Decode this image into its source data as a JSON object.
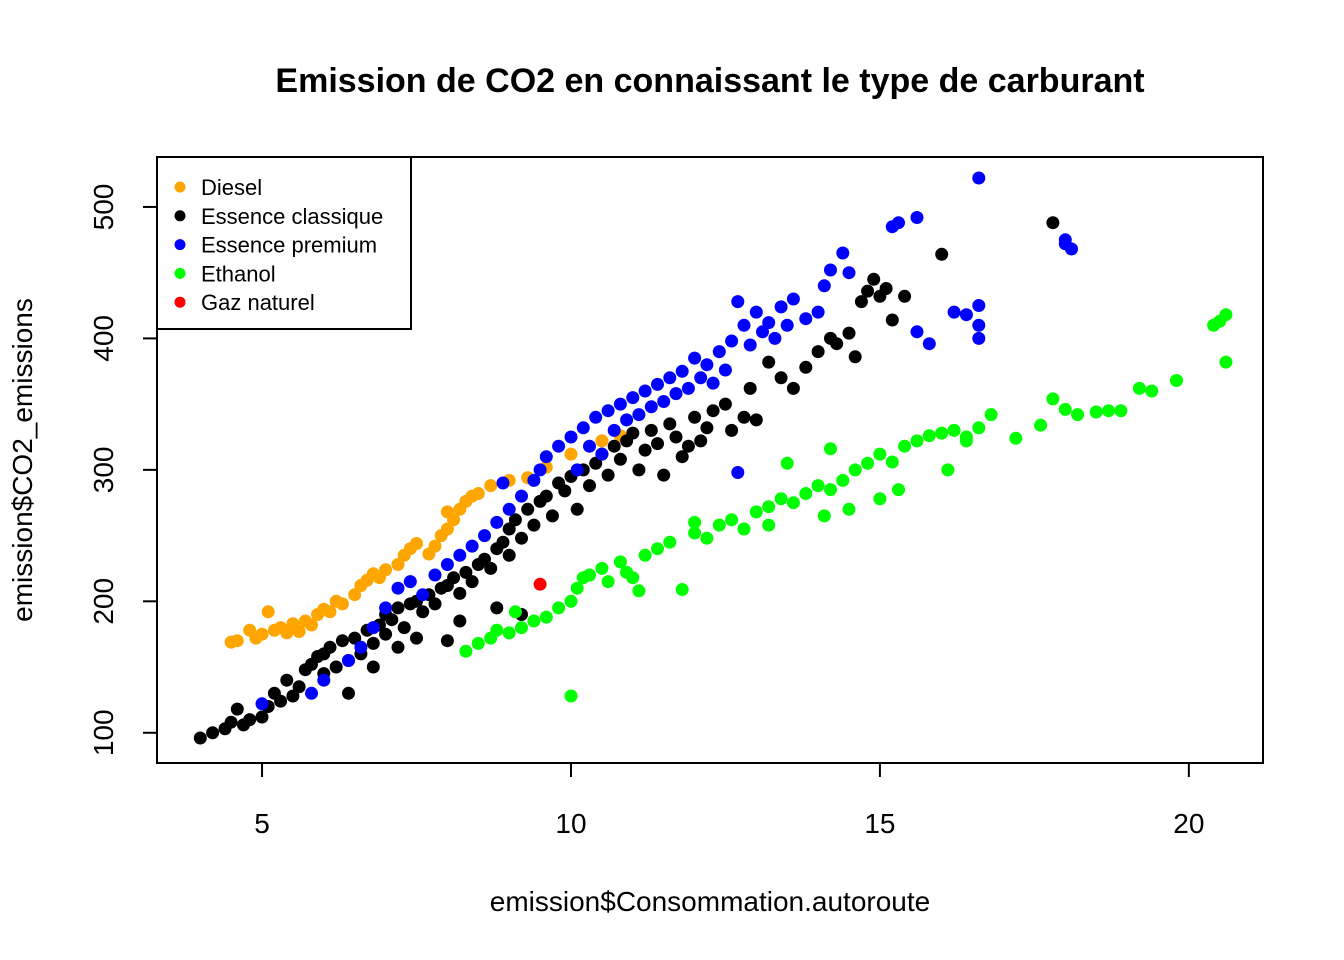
{
  "chart_data": {
    "type": "scatter",
    "title": "Emission de CO2 en connaissant le type de carburant",
    "xlabel": "emission$Consommation.autoroute",
    "ylabel": "emission$CO2_emissions",
    "xlim": [
      3.3,
      21.2
    ],
    "ylim": [
      77,
      538
    ],
    "xticks": [
      5,
      10,
      15,
      20
    ],
    "yticks": [
      100,
      200,
      300,
      400,
      500
    ],
    "grid": false,
    "legend_position": "top-left",
    "series": [
      {
        "name": "Diesel",
        "color": "#FFA500",
        "points": [
          [
            4.5,
            169
          ],
          [
            4.6,
            170
          ],
          [
            4.8,
            178
          ],
          [
            4.9,
            172
          ],
          [
            5.0,
            175
          ],
          [
            5.1,
            192
          ],
          [
            5.2,
            178
          ],
          [
            5.3,
            180
          ],
          [
            5.4,
            176
          ],
          [
            5.5,
            183
          ],
          [
            5.6,
            177
          ],
          [
            5.7,
            185
          ],
          [
            5.8,
            182
          ],
          [
            5.9,
            190
          ],
          [
            6.0,
            194
          ],
          [
            6.1,
            192
          ],
          [
            6.2,
            200
          ],
          [
            6.3,
            198
          ],
          [
            6.5,
            205
          ],
          [
            6.6,
            212
          ],
          [
            6.7,
            216
          ],
          [
            6.8,
            221
          ],
          [
            6.9,
            218
          ],
          [
            7.0,
            224
          ],
          [
            7.2,
            228
          ],
          [
            7.3,
            235
          ],
          [
            7.4,
            240
          ],
          [
            7.5,
            244
          ],
          [
            7.7,
            236
          ],
          [
            7.8,
            242
          ],
          [
            7.9,
            250
          ],
          [
            8.0,
            255
          ],
          [
            8.0,
            268
          ],
          [
            8.1,
            262
          ],
          [
            8.2,
            270
          ],
          [
            8.3,
            276
          ],
          [
            8.4,
            280
          ],
          [
            8.5,
            282
          ],
          [
            8.7,
            288
          ],
          [
            9.0,
            292
          ],
          [
            9.3,
            294
          ],
          [
            9.6,
            302
          ],
          [
            10.0,
            312
          ],
          [
            10.5,
            322
          ],
          [
            10.8,
            326
          ]
        ]
      },
      {
        "name": "Essence classique",
        "color": "#000000",
        "points": [
          [
            4.0,
            96
          ],
          [
            4.2,
            100
          ],
          [
            4.4,
            103
          ],
          [
            4.5,
            108
          ],
          [
            4.6,
            118
          ],
          [
            4.7,
            106
          ],
          [
            4.8,
            110
          ],
          [
            5.0,
            112
          ],
          [
            5.1,
            120
          ],
          [
            5.2,
            130
          ],
          [
            5.3,
            124
          ],
          [
            5.4,
            140
          ],
          [
            5.5,
            128
          ],
          [
            5.6,
            135
          ],
          [
            5.7,
            148
          ],
          [
            5.8,
            152
          ],
          [
            5.9,
            158
          ],
          [
            6.0,
            145
          ],
          [
            6.0,
            160
          ],
          [
            6.1,
            165
          ],
          [
            6.2,
            150
          ],
          [
            6.3,
            170
          ],
          [
            6.4,
            155
          ],
          [
            6.5,
            172
          ],
          [
            6.6,
            160
          ],
          [
            6.7,
            178
          ],
          [
            6.8,
            168
          ],
          [
            6.9,
            182
          ],
          [
            7.0,
            175
          ],
          [
            7.0,
            190
          ],
          [
            7.1,
            186
          ],
          [
            7.2,
            195
          ],
          [
            7.3,
            180
          ],
          [
            7.4,
            198
          ],
          [
            7.5,
            200
          ],
          [
            7.6,
            192
          ],
          [
            7.7,
            205
          ],
          [
            7.8,
            198
          ],
          [
            7.9,
            210
          ],
          [
            8.0,
            212
          ],
          [
            8.0,
            170
          ],
          [
            8.1,
            218
          ],
          [
            8.2,
            206
          ],
          [
            8.3,
            222
          ],
          [
            8.4,
            215
          ],
          [
            8.5,
            228
          ],
          [
            8.6,
            232
          ],
          [
            8.7,
            225
          ],
          [
            8.8,
            240
          ],
          [
            8.9,
            245
          ],
          [
            9.0,
            235
          ],
          [
            9.0,
            255
          ],
          [
            9.1,
            262
          ],
          [
            9.2,
            248
          ],
          [
            9.3,
            270
          ],
          [
            9.4,
            258
          ],
          [
            9.5,
            276
          ],
          [
            9.6,
            280
          ],
          [
            9.7,
            265
          ],
          [
            9.8,
            290
          ],
          [
            9.9,
            284
          ],
          [
            10.0,
            295
          ],
          [
            10.1,
            270
          ],
          [
            10.2,
            300
          ],
          [
            10.3,
            288
          ],
          [
            10.4,
            305
          ],
          [
            10.5,
            312
          ],
          [
            10.6,
            296
          ],
          [
            10.7,
            318
          ],
          [
            10.8,
            308
          ],
          [
            10.9,
            322
          ],
          [
            11.0,
            328
          ],
          [
            11.1,
            300
          ],
          [
            11.2,
            315
          ],
          [
            11.3,
            330
          ],
          [
            11.4,
            320
          ],
          [
            11.5,
            296
          ],
          [
            11.6,
            335
          ],
          [
            11.7,
            325
          ],
          [
            11.8,
            310
          ],
          [
            11.9,
            318
          ],
          [
            12.0,
            340
          ],
          [
            12.1,
            322
          ],
          [
            12.2,
            332
          ],
          [
            12.3,
            345
          ],
          [
            12.5,
            350
          ],
          [
            12.6,
            330
          ],
          [
            12.8,
            340
          ],
          [
            12.9,
            362
          ],
          [
            13.0,
            338
          ],
          [
            13.2,
            382
          ],
          [
            13.4,
            370
          ],
          [
            13.6,
            362
          ],
          [
            13.8,
            378
          ],
          [
            14.0,
            390
          ],
          [
            14.2,
            400
          ],
          [
            14.3,
            396
          ],
          [
            14.5,
            404
          ],
          [
            14.6,
            386
          ],
          [
            14.7,
            428
          ],
          [
            14.8,
            436
          ],
          [
            14.9,
            445
          ],
          [
            15.0,
            432
          ],
          [
            15.1,
            438
          ],
          [
            15.2,
            414
          ],
          [
            15.4,
            432
          ],
          [
            16.0,
            464
          ],
          [
            17.8,
            488
          ],
          [
            6.4,
            130
          ],
          [
            6.8,
            150
          ],
          [
            7.2,
            165
          ],
          [
            7.5,
            172
          ],
          [
            8.2,
            185
          ],
          [
            8.8,
            195
          ],
          [
            9.2,
            190
          ]
        ]
      },
      {
        "name": "Essence premium",
        "color": "#0000FF",
        "points": [
          [
            5.0,
            122
          ],
          [
            5.8,
            130
          ],
          [
            6.0,
            140
          ],
          [
            6.4,
            155
          ],
          [
            6.6,
            165
          ],
          [
            6.8,
            180
          ],
          [
            7.0,
            195
          ],
          [
            7.2,
            210
          ],
          [
            7.4,
            215
          ],
          [
            7.6,
            205
          ],
          [
            7.8,
            220
          ],
          [
            8.0,
            228
          ],
          [
            8.2,
            235
          ],
          [
            8.4,
            242
          ],
          [
            8.6,
            250
          ],
          [
            8.8,
            260
          ],
          [
            8.9,
            290
          ],
          [
            9.0,
            270
          ],
          [
            9.2,
            280
          ],
          [
            9.4,
            292
          ],
          [
            9.5,
            300
          ],
          [
            9.6,
            310
          ],
          [
            9.8,
            318
          ],
          [
            10.0,
            325
          ],
          [
            10.1,
            300
          ],
          [
            10.2,
            332
          ],
          [
            10.3,
            318
          ],
          [
            10.4,
            340
          ],
          [
            10.5,
            312
          ],
          [
            10.6,
            345
          ],
          [
            10.7,
            330
          ],
          [
            10.8,
            350
          ],
          [
            10.9,
            338
          ],
          [
            11.0,
            355
          ],
          [
            11.1,
            342
          ],
          [
            11.2,
            360
          ],
          [
            11.3,
            348
          ],
          [
            11.4,
            365
          ],
          [
            11.5,
            352
          ],
          [
            11.6,
            370
          ],
          [
            11.7,
            358
          ],
          [
            11.8,
            375
          ],
          [
            11.9,
            362
          ],
          [
            12.0,
            385
          ],
          [
            12.1,
            370
          ],
          [
            12.2,
            380
          ],
          [
            12.3,
            366
          ],
          [
            12.4,
            390
          ],
          [
            12.5,
            376
          ],
          [
            12.6,
            398
          ],
          [
            12.7,
            428
          ],
          [
            12.7,
            298
          ],
          [
            12.8,
            410
          ],
          [
            12.9,
            395
          ],
          [
            13.0,
            420
          ],
          [
            13.1,
            405
          ],
          [
            13.2,
            412
          ],
          [
            13.3,
            400
          ],
          [
            13.4,
            424
          ],
          [
            13.5,
            410
          ],
          [
            13.6,
            430
          ],
          [
            13.8,
            415
          ],
          [
            14.0,
            420
          ],
          [
            14.1,
            440
          ],
          [
            14.2,
            452
          ],
          [
            14.4,
            465
          ],
          [
            14.5,
            450
          ],
          [
            15.2,
            485
          ],
          [
            15.3,
            488
          ],
          [
            15.6,
            492
          ],
          [
            16.2,
            420
          ],
          [
            16.4,
            418
          ],
          [
            15.6,
            405
          ],
          [
            15.8,
            396
          ],
          [
            16.6,
            425
          ],
          [
            16.6,
            410
          ],
          [
            16.6,
            400
          ],
          [
            16.6,
            522
          ],
          [
            18.0,
            475
          ],
          [
            18.1,
            468
          ],
          [
            18.0,
            472
          ]
        ]
      },
      {
        "name": "Ethanol",
        "color": "#00FF00",
        "points": [
          [
            8.3,
            162
          ],
          [
            8.5,
            168
          ],
          [
            8.7,
            172
          ],
          [
            8.8,
            178
          ],
          [
            9.0,
            176
          ],
          [
            9.1,
            192
          ],
          [
            9.2,
            180
          ],
          [
            9.4,
            185
          ],
          [
            9.6,
            188
          ],
          [
            9.8,
            195
          ],
          [
            10.0,
            128
          ],
          [
            10.0,
            200
          ],
          [
            10.1,
            210
          ],
          [
            10.2,
            218
          ],
          [
            10.3,
            220
          ],
          [
            10.5,
            225
          ],
          [
            10.6,
            215
          ],
          [
            10.8,
            230
          ],
          [
            10.9,
            222
          ],
          [
            11.0,
            218
          ],
          [
            11.1,
            208
          ],
          [
            11.2,
            235
          ],
          [
            11.4,
            240
          ],
          [
            11.6,
            245
          ],
          [
            11.8,
            209
          ],
          [
            12.0,
            252
          ],
          [
            12.2,
            248
          ],
          [
            12.4,
            258
          ],
          [
            12.6,
            262
          ],
          [
            12.8,
            255
          ],
          [
            13.0,
            268
          ],
          [
            13.2,
            272
          ],
          [
            13.4,
            278
          ],
          [
            13.6,
            275
          ],
          [
            13.8,
            282
          ],
          [
            14.0,
            288
          ],
          [
            14.2,
            285
          ],
          [
            14.4,
            292
          ],
          [
            14.6,
            300
          ],
          [
            14.8,
            305
          ],
          [
            15.0,
            312
          ],
          [
            15.2,
            306
          ],
          [
            15.4,
            318
          ],
          [
            15.6,
            322
          ],
          [
            15.8,
            326
          ],
          [
            16.0,
            328
          ],
          [
            16.2,
            330
          ],
          [
            16.4,
            325
          ],
          [
            16.6,
            332
          ],
          [
            16.8,
            342
          ],
          [
            17.2,
            324
          ],
          [
            17.6,
            334
          ],
          [
            17.8,
            354
          ],
          [
            18.0,
            346
          ],
          [
            18.2,
            342
          ],
          [
            18.5,
            344
          ],
          [
            18.7,
            345
          ],
          [
            18.9,
            345
          ],
          [
            19.2,
            362
          ],
          [
            19.4,
            360
          ],
          [
            19.8,
            368
          ],
          [
            20.4,
            410
          ],
          [
            20.5,
            413
          ],
          [
            20.6,
            418
          ],
          [
            20.6,
            382
          ],
          [
            13.2,
            258
          ],
          [
            14.1,
            265
          ],
          [
            14.5,
            270
          ],
          [
            15.0,
            278
          ],
          [
            15.3,
            285
          ],
          [
            16.4,
            322
          ],
          [
            16.1,
            300
          ],
          [
            13.5,
            305
          ],
          [
            12.0,
            260
          ],
          [
            14.2,
            316
          ]
        ]
      },
      {
        "name": "Gaz naturel",
        "color": "#FF0000",
        "points": [
          [
            9.5,
            213
          ]
        ]
      }
    ]
  }
}
